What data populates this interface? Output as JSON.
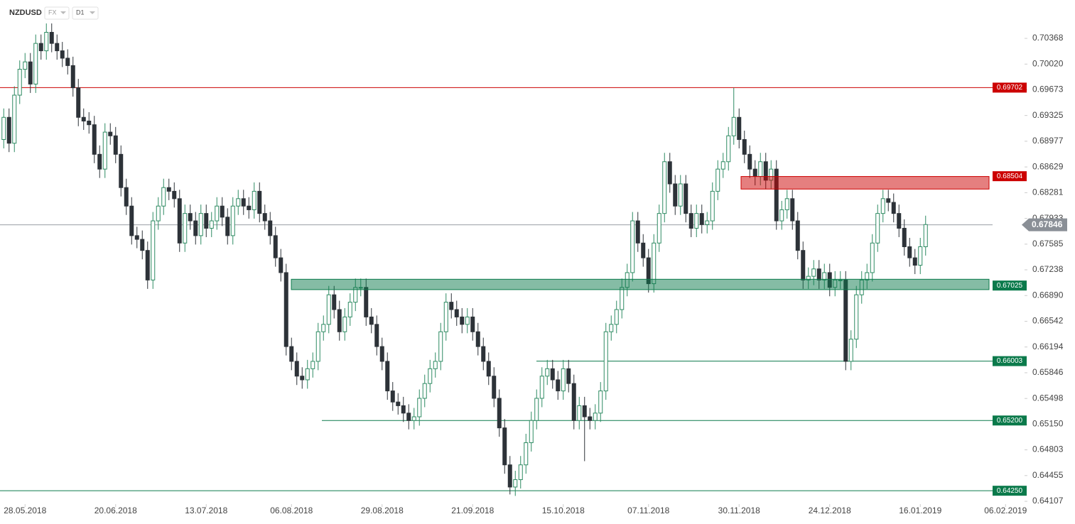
{
  "chart_data": {
    "type": "candlestick",
    "symbol": "NZDUSD",
    "market": "FX",
    "timeframe": "D1",
    "colors": {
      "up": "#2e8b62",
      "down": "#2d3238"
    },
    "xlim": [
      -0.7,
      191.3
    ],
    "ylim": [
      0.64069,
      0.70887
    ],
    "xticks": [
      {
        "value": 4,
        "label": "28.05.2018"
      },
      {
        "value": 21,
        "label": "20.06.2018"
      },
      {
        "value": 38,
        "label": "13.07.2018"
      },
      {
        "value": 54,
        "label": "06.08.2018"
      },
      {
        "value": 71,
        "label": "29.08.2018"
      },
      {
        "value": 88,
        "label": "21.09.2018"
      },
      {
        "value": 105,
        "label": "15.10.2018"
      },
      {
        "value": 121,
        "label": "07.11.2018"
      },
      {
        "value": 138,
        "label": "30.11.2018"
      },
      {
        "value": 155,
        "label": "24.12.2018"
      },
      {
        "value": 172,
        "label": "16.01.2019"
      },
      {
        "value": 188,
        "label": "06.02.2019"
      }
    ],
    "yticks": [
      0.70368,
      {
        "value": 0.7002,
        "label": "0.70020"
      },
      0.69673,
      0.69325,
      0.68977,
      0.68629,
      0.68281,
      0.67933,
      0.67585,
      0.67238,
      {
        "value": 0.6689,
        "label": "0.66890"
      },
      0.66542,
      0.66194,
      0.65846,
      0.65498,
      {
        "value": 0.6515,
        "label": "0.65150"
      },
      0.64803,
      0.64455,
      0.64107
    ],
    "levels": [
      {
        "value": 0.69702,
        "style": "line",
        "color": "#cc0000"
      },
      {
        "value": 0.68504,
        "style": "zone",
        "zone": [
          0.6833,
          0.685
        ],
        "color": "#cc0000"
      },
      {
        "value": 0.67846,
        "style": "price",
        "color": "#8a8f96"
      },
      {
        "value": 0.67025,
        "style": "zone",
        "zone": [
          0.6697,
          0.6711
        ],
        "color": "#0b7a4b"
      },
      {
        "value": 0.66003,
        "style": "line",
        "color": "#0b7a4b"
      },
      {
        "value": 0.652,
        "label": "0.65200",
        "style": "line",
        "color": "#0b7a4b"
      },
      {
        "value": 0.6425,
        "label": "0.64250",
        "style": "line",
        "color": "#0b7a4b"
      }
    ],
    "open": [
      0.69,
      0.693,
      0.6895,
      0.696,
      0.6995,
      0.7005,
      0.6975,
      0.703,
      0.702,
      0.7045,
      0.703,
      0.702,
      0.701,
      0.7,
      0.697,
      0.693,
      0.6925,
      0.692,
      0.688,
      0.686,
      0.691,
      0.6905,
      0.688,
      0.6835,
      0.681,
      0.677,
      0.6765,
      0.675,
      0.671,
      0.679,
      0.681,
      0.6835,
      0.683,
      0.682,
      0.676,
      0.68,
      0.679,
      0.677,
      0.68,
      0.678,
      0.679,
      0.681,
      0.6795,
      0.677,
      0.681,
      0.682,
      0.681,
      0.6805,
      0.683,
      0.68,
      0.679,
      0.677,
      0.674,
      0.672,
      0.662,
      0.66,
      0.658,
      0.6575,
      0.659,
      0.66,
      0.664,
      0.665,
      0.669,
      0.667,
      0.664,
      0.666,
      0.668,
      0.67,
      0.67,
      0.666,
      0.665,
      0.662,
      0.66,
      0.656,
      0.6545,
      0.654,
      0.653,
      0.652,
      0.6525,
      0.655,
      0.657,
      0.659,
      0.66,
      0.664,
      0.668,
      0.667,
      0.666,
      0.665,
      0.666,
      0.664,
      0.662,
      0.66,
      0.658,
      0.655,
      0.651,
      0.646,
      0.643,
      0.644,
      0.646,
      0.649,
      0.652,
      0.655,
      0.658,
      0.659,
      0.6575,
      0.656,
      0.659,
      0.657,
      0.652,
      0.654,
      0.6525,
      0.652,
      0.653,
      0.656,
      0.664,
      0.665,
      0.667,
      0.67,
      0.672,
      0.679,
      0.676,
      0.674,
      0.6705,
      0.676,
      0.68,
      0.687,
      0.684,
      0.681,
      0.684,
      0.68,
      0.678,
      0.68,
      0.6785,
      0.679,
      0.683,
      0.686,
      0.687,
      0.6905,
      0.693,
      0.69,
      0.688,
      0.686,
      0.685,
      0.687,
      0.6845,
      0.686,
      0.679,
      0.6805,
      0.682,
      0.679,
      0.675,
      0.671,
      0.6715,
      0.6725,
      0.671,
      0.672,
      0.67,
      0.671,
      0.671,
      0.66,
      0.663,
      0.669,
      0.671,
      0.672,
      0.676,
      0.68,
      0.682,
      0.6815,
      0.68,
      0.678,
      0.6755,
      0.674,
      0.673,
      0.6755
    ],
    "high": [
      0.6942,
      0.6942,
      0.6972,
      0.7007,
      0.7017,
      0.7017,
      0.7042,
      0.7042,
      0.7057,
      0.7057,
      0.7042,
      0.7032,
      0.7022,
      0.7012,
      0.6982,
      0.6942,
      0.6937,
      0.6932,
      0.6892,
      0.6922,
      0.6922,
      0.6917,
      0.6892,
      0.6847,
      0.6822,
      0.6782,
      0.6777,
      0.6762,
      0.6802,
      0.6822,
      0.6847,
      0.6847,
      0.6842,
      0.6832,
      0.6812,
      0.6812,
      0.6802,
      0.6812,
      0.6812,
      0.6802,
      0.6822,
      0.6822,
      0.6807,
      0.6822,
      0.6832,
      0.6832,
      0.6822,
      0.6842,
      0.6842,
      0.6812,
      0.6802,
      0.6782,
      0.6752,
      0.6732,
      0.6632,
      0.6612,
      0.6592,
      0.6602,
      0.6612,
      0.6652,
      0.6662,
      0.6702,
      0.6702,
      0.6682,
      0.6672,
      0.6692,
      0.6712,
      0.6712,
      0.6712,
      0.6672,
      0.6662,
      0.6632,
      0.6612,
      0.6572,
      0.6557,
      0.6552,
      0.6542,
      0.6537,
      0.6562,
      0.6582,
      0.6602,
      0.6612,
      0.6652,
      0.6692,
      0.6692,
      0.6682,
      0.6672,
      0.6672,
      0.6672,
      0.6652,
      0.6632,
      0.6612,
      0.6592,
      0.6562,
      0.6522,
      0.6472,
      0.6452,
      0.6472,
      0.6502,
      0.6532,
      0.6562,
      0.6592,
      0.6602,
      0.6602,
      0.6587,
      0.6602,
      0.6602,
      0.6582,
      0.6552,
      0.6552,
      0.6537,
      0.6542,
      0.6572,
      0.6652,
      0.6662,
      0.6682,
      0.6712,
      0.6732,
      0.6802,
      0.6802,
      0.6772,
      0.6752,
      0.6772,
      0.6812,
      0.6882,
      0.6882,
      0.6852,
      0.6852,
      0.6852,
      0.6812,
      0.6812,
      0.6812,
      0.6802,
      0.6842,
      0.6872,
      0.6882,
      0.6917,
      0.697,
      0.6942,
      0.6912,
      0.6892,
      0.6872,
      0.6882,
      0.6882,
      0.6872,
      0.6872,
      0.6817,
      0.6832,
      0.6832,
      0.6802,
      0.6762,
      0.6727,
      0.6737,
      0.6737,
      0.6732,
      0.6732,
      0.6722,
      0.6722,
      0.6722,
      0.6642,
      0.6702,
      0.6722,
      0.6732,
      0.6772,
      0.6812,
      0.6832,
      0.6832,
      0.6827,
      0.6812,
      0.6792,
      0.6767,
      0.6752,
      0.6767,
      0.6797
    ],
    "low": [
      0.6888,
      0.6883,
      0.6883,
      0.6948,
      0.6983,
      0.6963,
      0.6963,
      0.7008,
      0.7008,
      0.7018,
      0.7008,
      0.6998,
      0.6988,
      0.6958,
      0.6918,
      0.6913,
      0.6908,
      0.6868,
      0.6848,
      0.6848,
      0.6893,
      0.6868,
      0.6823,
      0.6798,
      0.6758,
      0.6753,
      0.6738,
      0.6698,
      0.6698,
      0.6778,
      0.6798,
      0.6818,
      0.6808,
      0.6748,
      0.6748,
      0.6778,
      0.6758,
      0.6758,
      0.6768,
      0.6768,
      0.6778,
      0.6783,
      0.6758,
      0.6758,
      0.6798,
      0.6798,
      0.6793,
      0.6793,
      0.6788,
      0.6778,
      0.6758,
      0.6728,
      0.6708,
      0.6608,
      0.6588,
      0.6568,
      0.6563,
      0.6563,
      0.6578,
      0.6588,
      0.6628,
      0.6638,
      0.6658,
      0.6628,
      0.6628,
      0.6648,
      0.6668,
      0.6688,
      0.6648,
      0.6638,
      0.6608,
      0.6588,
      0.6548,
      0.6533,
      0.6528,
      0.6518,
      0.6508,
      0.6508,
      0.6513,
      0.6538,
      0.6558,
      0.6578,
      0.6588,
      0.6628,
      0.6658,
      0.6648,
      0.6638,
      0.6638,
      0.6628,
      0.6608,
      0.6588,
      0.6568,
      0.6538,
      0.6498,
      0.6448,
      0.642,
      0.6418,
      0.6428,
      0.6448,
      0.6478,
      0.6508,
      0.6538,
      0.6568,
      0.6563,
      0.6548,
      0.6548,
      0.6558,
      0.6508,
      0.6508,
      0.6465,
      0.6508,
      0.6508,
      0.6518,
      0.6548,
      0.6628,
      0.6638,
      0.6658,
      0.6688,
      0.6708,
      0.6748,
      0.6728,
      0.6693,
      0.6693,
      0.6748,
      0.6788,
      0.6828,
      0.6798,
      0.6798,
      0.6788,
      0.6768,
      0.6768,
      0.6773,
      0.6773,
      0.6778,
      0.6818,
      0.6848,
      0.6858,
      0.6893,
      0.6888,
      0.6868,
      0.6848,
      0.6838,
      0.6838,
      0.6833,
      0.6833,
      0.6778,
      0.6778,
      0.6793,
      0.6778,
      0.6738,
      0.6698,
      0.6698,
      0.6703,
      0.6698,
      0.6698,
      0.6688,
      0.6688,
      0.6698,
      0.6588,
      0.6588,
      0.6618,
      0.6678,
      0.6698,
      0.6708,
      0.6748,
      0.6788,
      0.6803,
      0.6788,
      0.6768,
      0.6743,
      0.6728,
      0.6718,
      0.6718,
      0.6743
    ],
    "close": [
      0.693,
      0.6895,
      0.696,
      0.6995,
      0.7005,
      0.6975,
      0.703,
      0.702,
      0.7045,
      0.703,
      0.702,
      0.701,
      0.7,
      0.697,
      0.693,
      0.6925,
      0.692,
      0.688,
      0.686,
      0.691,
      0.6905,
      0.688,
      0.6835,
      0.681,
      0.677,
      0.6765,
      0.675,
      0.671,
      0.679,
      0.681,
      0.6835,
      0.683,
      0.682,
      0.676,
      0.68,
      0.679,
      0.677,
      0.68,
      0.678,
      0.679,
      0.681,
      0.6795,
      0.677,
      0.681,
      0.682,
      0.681,
      0.6805,
      0.683,
      0.68,
      0.679,
      0.677,
      0.674,
      0.672,
      0.662,
      0.66,
      0.658,
      0.6575,
      0.659,
      0.66,
      0.664,
      0.665,
      0.669,
      0.667,
      0.664,
      0.666,
      0.668,
      0.67,
      0.67,
      0.666,
      0.665,
      0.662,
      0.66,
      0.656,
      0.6545,
      0.654,
      0.653,
      0.652,
      0.6525,
      0.655,
      0.657,
      0.659,
      0.66,
      0.664,
      0.668,
      0.667,
      0.666,
      0.665,
      0.666,
      0.664,
      0.662,
      0.66,
      0.658,
      0.655,
      0.651,
      0.646,
      0.643,
      0.644,
      0.646,
      0.649,
      0.652,
      0.655,
      0.658,
      0.659,
      0.6575,
      0.656,
      0.659,
      0.657,
      0.652,
      0.654,
      0.6525,
      0.652,
      0.653,
      0.656,
      0.664,
      0.665,
      0.667,
      0.67,
      0.672,
      0.679,
      0.676,
      0.674,
      0.6705,
      0.676,
      0.68,
      0.687,
      0.684,
      0.681,
      0.684,
      0.68,
      0.678,
      0.68,
      0.6785,
      0.679,
      0.683,
      0.686,
      0.687,
      0.6905,
      0.693,
      0.69,
      0.688,
      0.686,
      0.685,
      0.687,
      0.6845,
      0.686,
      0.679,
      0.6805,
      0.682,
      0.679,
      0.675,
      0.671,
      0.6715,
      0.6725,
      0.671,
      0.672,
      0.67,
      0.671,
      0.671,
      0.66,
      0.663,
      0.669,
      0.671,
      0.672,
      0.676,
      0.68,
      0.682,
      0.6815,
      0.68,
      0.678,
      0.6755,
      0.674,
      0.673,
      0.6755,
      0.6785
    ]
  }
}
